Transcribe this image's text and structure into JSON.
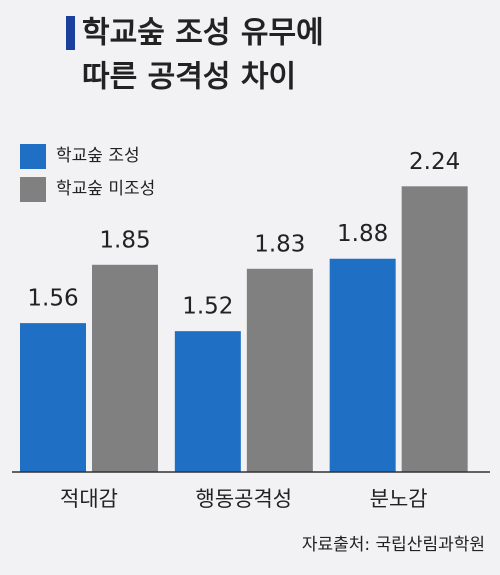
{
  "chart_data": {
    "type": "bar",
    "title": [
      "학교숲 조성 유무에",
      "따른 공격성 차이"
    ],
    "categories": [
      "적대감",
      "행동공격성",
      "분노감"
    ],
    "series": [
      {
        "name": "학교숲 조성",
        "color": "#1f6fc5",
        "values": [
          1.56,
          1.52,
          1.88
        ]
      },
      {
        "name": "학교숲 미조성",
        "color": "#808080",
        "values": [
          1.85,
          1.83,
          2.24
        ]
      }
    ],
    "ylim": [
      0.82,
      2.5
    ],
    "source": "자료출처: 국립산림과학원"
  }
}
